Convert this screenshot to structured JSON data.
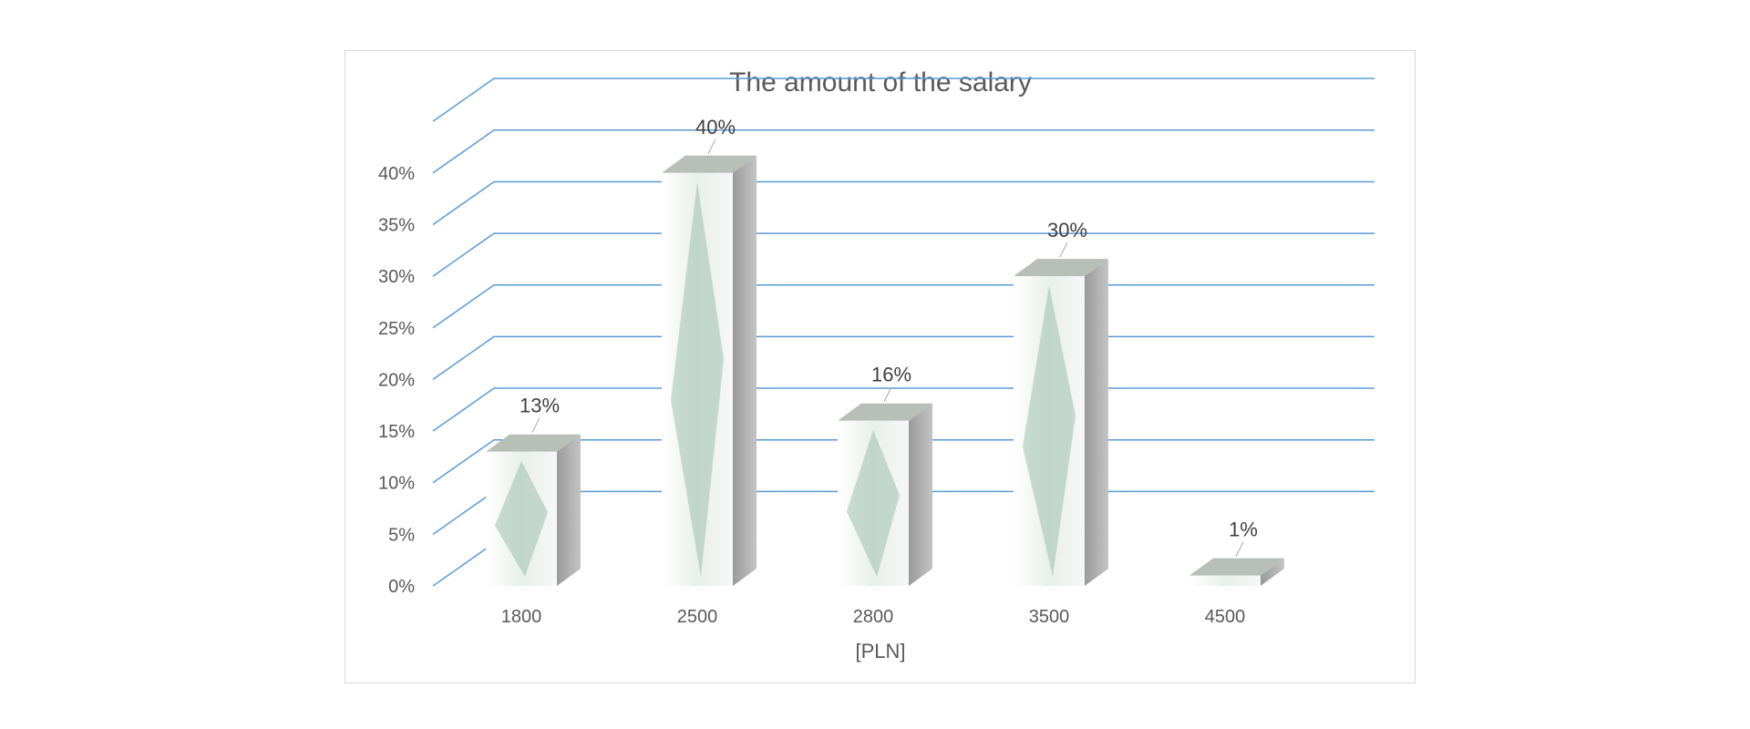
{
  "chart_data": {
    "type": "bar",
    "title": "The amount of the salary",
    "xlabel": "[PLN]",
    "ylabel": "",
    "categories": [
      "1800",
      "2500",
      "2800",
      "3500",
      "4500"
    ],
    "values": [
      13,
      40,
      16,
      30,
      1
    ],
    "data_labels": [
      "13%",
      "40%",
      "16%",
      "30%",
      "1%"
    ],
    "ylim": [
      0,
      40
    ],
    "yticks": [
      "0%",
      "5%",
      "10%",
      "15%",
      "20%",
      "25%",
      "30%",
      "35%",
      "40%"
    ],
    "grid": true,
    "legend": "none",
    "style": "3d-column",
    "colors": {
      "grid": "#5b9bd5",
      "bar_front": "#eef3ee",
      "bar_side": "#8f8f8f",
      "bar_top": "#b8beb8",
      "note": "#8fb3a4"
    }
  }
}
